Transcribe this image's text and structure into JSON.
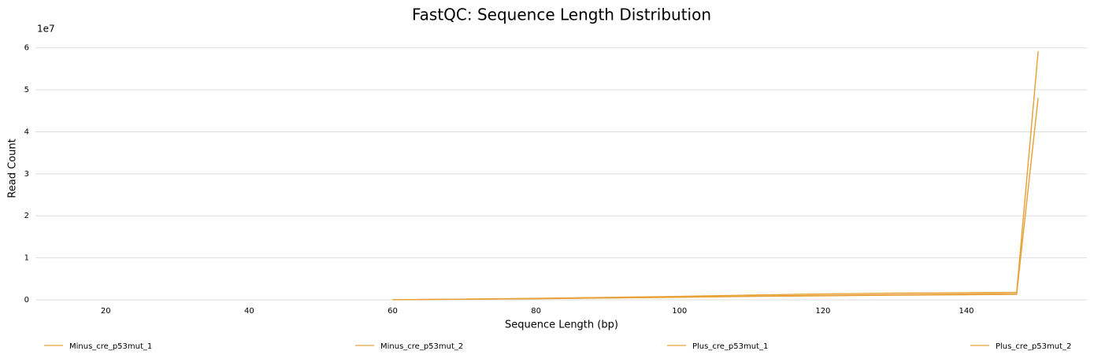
{
  "chart_data": {
    "type": "line",
    "title": "FastQC: Sequence Length Distribution",
    "xlabel": "Sequence Length (bp)",
    "ylabel": "Read Count",
    "y_offset_label": "1e7",
    "x": [
      60,
      70,
      80,
      90,
      100,
      110,
      120,
      130,
      140,
      147,
      150
    ],
    "series": [
      {
        "name": "Minus_cre_p53mut_1",
        "color": "#e8a33d",
        "values": [
          20000,
          150000,
          300000,
          500000,
          700000,
          900000,
          1100000,
          1250000,
          1400000,
          1500000,
          59000000
        ]
      },
      {
        "name": "Minus_cre_p53mut_2",
        "color": "#e8a33d",
        "values": [
          25000,
          180000,
          380000,
          600000,
          850000,
          1150000,
          1400000,
          1600000,
          1700000,
          1800000,
          59200000
        ]
      },
      {
        "name": "Plus_cre_p53mut_1",
        "color": "#e8a33d",
        "values": [
          15000,
          120000,
          250000,
          420000,
          600000,
          800000,
          950000,
          1100000,
          1200000,
          1300000,
          48000000
        ]
      },
      {
        "name": "Plus_cre_p53mut_2",
        "color": "#e8a33d",
        "values": [
          18000,
          140000,
          280000,
          460000,
          650000,
          850000,
          1000000,
          1150000,
          1250000,
          1350000,
          48100000
        ]
      }
    ],
    "xlim": [
      10.2,
      156.8
    ],
    "ylim": [
      0,
      60700000
    ],
    "xticks": [
      20,
      40,
      60,
      80,
      100,
      120,
      140
    ],
    "yticks": [
      {
        "value": 0,
        "label": "0"
      },
      {
        "value": 10000000,
        "label": "1"
      },
      {
        "value": 20000000,
        "label": "2"
      },
      {
        "value": 30000000,
        "label": "3"
      },
      {
        "value": 40000000,
        "label": "4"
      },
      {
        "value": 50000000,
        "label": "5"
      },
      {
        "value": 60000000,
        "label": "6"
      }
    ],
    "grid": true,
    "legend": "bottom"
  }
}
